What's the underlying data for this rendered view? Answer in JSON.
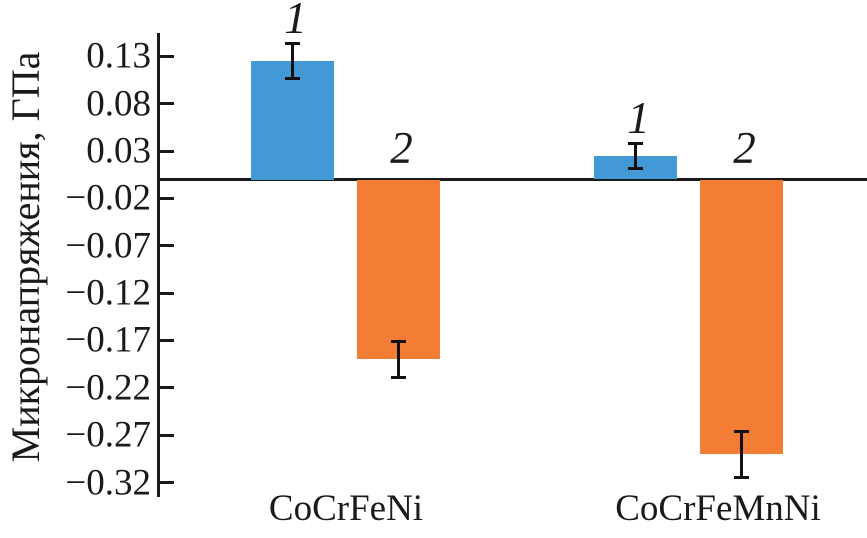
{
  "figure": {
    "kind": "scientific bar chart",
    "background": "#ffffff",
    "axis_color": "#1a1a1a"
  },
  "chart_data": {
    "type": "bar",
    "title": "",
    "xlabel": "",
    "ylabel": "Микронапряжения, ГПа",
    "categories": [
      "CoCrFeNi",
      "CoCrFeMnNi"
    ],
    "series": [
      {
        "name": "1",
        "color": "#4399d5",
        "values": [
          0.125,
          0.025
        ],
        "errors": [
          0.02,
          0.015
        ]
      },
      {
        "name": "2",
        "color": "#f47d35",
        "values": [
          -0.19,
          -0.29
        ],
        "errors": [
          0.021,
          0.026
        ]
      }
    ],
    "error_bar_color": "#111111",
    "ylim": [
      -0.335,
      0.155
    ],
    "yticks": [
      0.13,
      0.08,
      0.03,
      -0.02,
      -0.07,
      -0.12,
      -0.17,
      -0.22,
      -0.27,
      -0.32
    ],
    "ytick_labels": [
      "0.13",
      "0.08",
      "0.03",
      "−0.02",
      "−0.07",
      "−0.12",
      "−0.17",
      "−0.22",
      "−0.27",
      "−0.32"
    ],
    "grid": false,
    "legend": "none; bars annotated with italic numerals 1 and 2",
    "baseline": 0
  }
}
